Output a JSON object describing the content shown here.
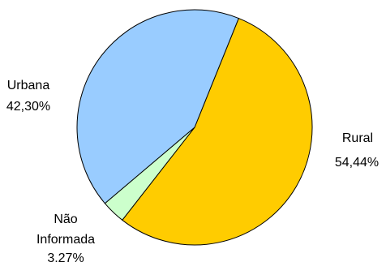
{
  "chart_data": {
    "type": "pie",
    "slices": [
      {
        "name": "Rural",
        "value_label": "54,44%",
        "value": 54.44,
        "color": "#FFCC00"
      },
      {
        "name": "Não Informada",
        "value_label": "3,27%",
        "value": 3.27,
        "color": "#CCFFCC"
      },
      {
        "name": "Urbana",
        "value_label": "42,30%",
        "value": 42.3,
        "color": "#99CCFF"
      }
    ],
    "start_direction": "top-right",
    "direction": "clockwise",
    "legend": "none",
    "labels": "outside"
  }
}
